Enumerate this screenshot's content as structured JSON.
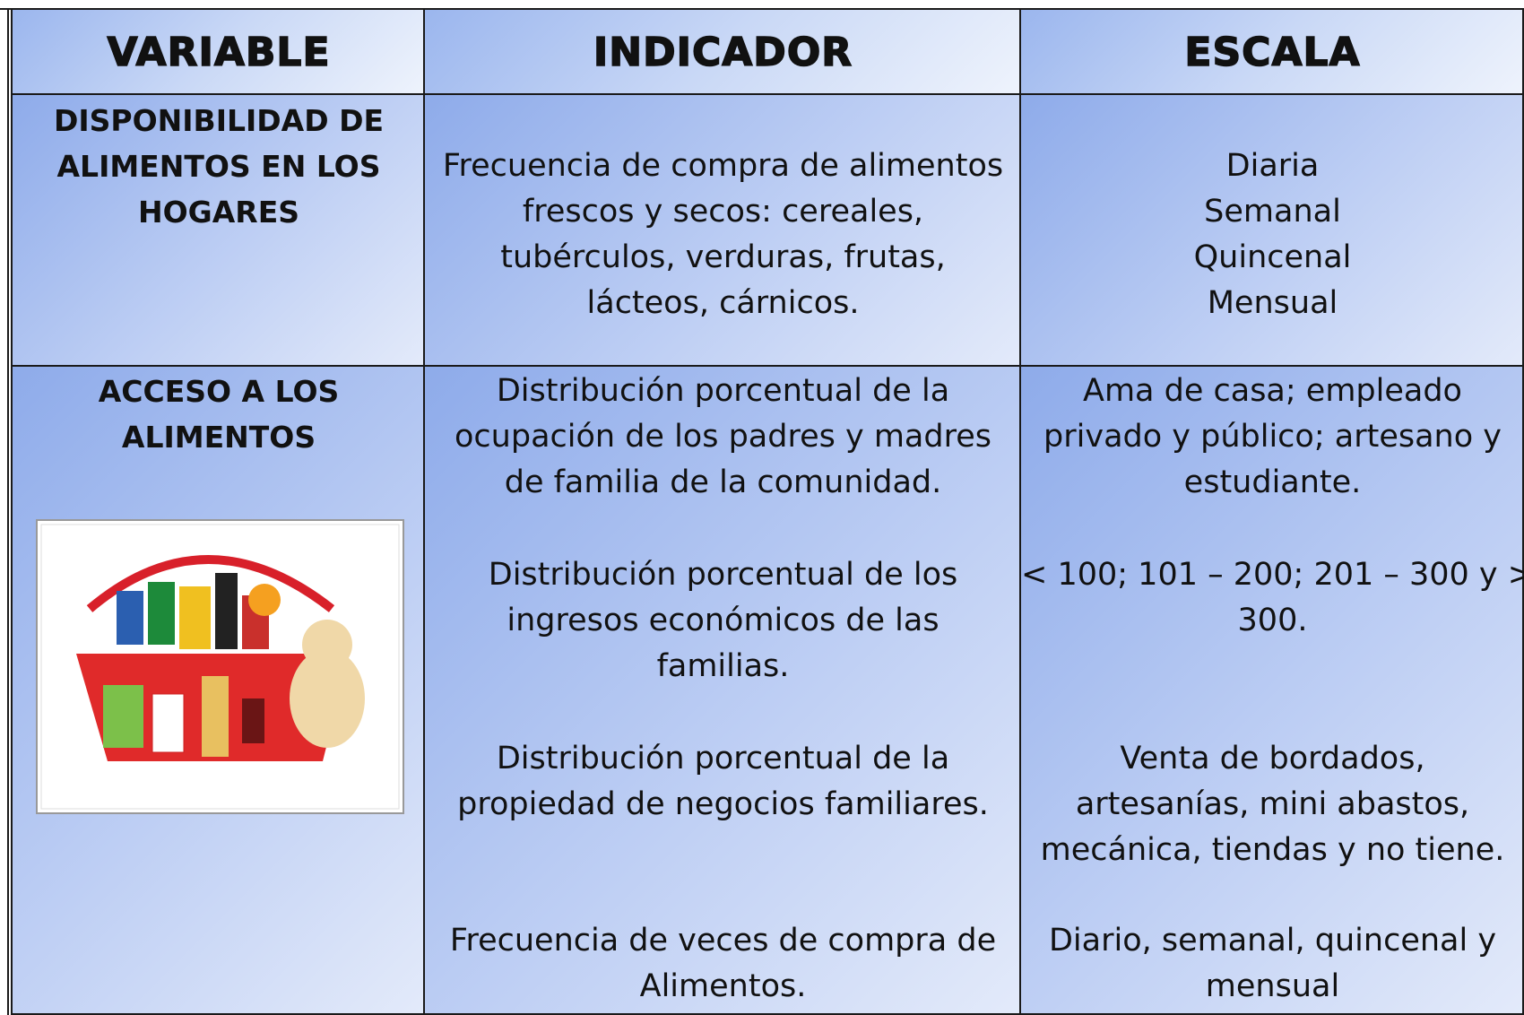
{
  "table": {
    "header": [
      "VARIABLE",
      "INDICADOR",
      "ESCALA"
    ],
    "rows": [
      [
        [
          [
            "DISPONIBILIDAD DE",
            "ALIMENTOS EN LOS",
            "HOGARES"
          ]
        ],
        [
          [
            "Frecuencia de compra de alimentos",
            "frescos y secos: cereales,",
            "tubérculos, verduras, frutas,",
            "lácteos, cárnicos."
          ]
        ],
        [
          [
            "Diaria",
            "Semanal",
            "Quincenal",
            "Mensual"
          ]
        ]
      ],
      [
        [
          [
            "ACCESO A LOS",
            "ALIMENTOS"
          ]
        ],
        [
          [
            "Distribución porcentual de la",
            "ocupación de los padres y madres",
            "de familia de la comunidad."
          ],
          [
            "Distribución porcentual de los",
            "ingresos económicos de las",
            "familias."
          ],
          [
            "Distribución porcentual de la",
            "propiedad de negocios familiares."
          ],
          [
            "Frecuencia de veces de compra de",
            "Alimentos."
          ]
        ],
        [
          [
            "Ama de casa; empleado",
            "privado y público; artesano y",
            "estudiante."
          ],
          [
            "<  100; 101 – 200; 201 – 300 y >",
            "300."
          ],
          [
            "Venta de bordados,",
            "artesanías, mini abastos,",
            "mecánica, tiendas y no tiene."
          ],
          [
            "Diario, semanal, quincenal y",
            "mensual"
          ]
        ]
      ]
    ]
  }
}
